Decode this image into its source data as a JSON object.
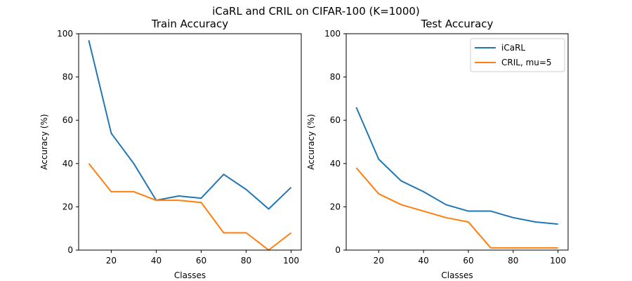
{
  "suptitle": "iCaRL and CRIL on CIFAR-100 (K=1000)",
  "colors": {
    "icarl": "#1f77b4",
    "cril": "#ff7f0e"
  },
  "chart_data": [
    {
      "type": "line",
      "title": "Train Accuracy",
      "xlabel": "Classes",
      "ylabel": "Accuracy (%)",
      "xlim": [
        5.5,
        104.5
      ],
      "ylim": [
        0,
        100
      ],
      "xticks": [
        20,
        40,
        60,
        80,
        100
      ],
      "yticks": [
        0,
        20,
        40,
        60,
        80,
        100
      ],
      "grid": false,
      "legend": null,
      "x": [
        10,
        20,
        30,
        40,
        50,
        60,
        70,
        80,
        90,
        100
      ],
      "series": [
        {
          "key": "icarl",
          "values": [
            97,
            54,
            40,
            23,
            25,
            24,
            35,
            28,
            19,
            29
          ]
        },
        {
          "key": "cril",
          "values": [
            40,
            27,
            27,
            23,
            23,
            22,
            8,
            8,
            0,
            8
          ]
        }
      ]
    },
    {
      "type": "line",
      "title": "Test Accuracy",
      "xlabel": "Classes",
      "ylabel": "Accuracy (%)",
      "xlim": [
        5.5,
        104.5
      ],
      "ylim": [
        0,
        100
      ],
      "xticks": [
        20,
        40,
        60,
        80,
        100
      ],
      "yticks": [
        0,
        20,
        40,
        60,
        80,
        100
      ],
      "grid": false,
      "legend": "top-right",
      "x": [
        10,
        20,
        30,
        40,
        50,
        60,
        70,
        80,
        90,
        100
      ],
      "series": [
        {
          "key": "icarl",
          "name": "iCaRL",
          "values": [
            66,
            42,
            32,
            27,
            21,
            18,
            18,
            15,
            13,
            12
          ]
        },
        {
          "key": "cril",
          "name": "CRIL, mu=5",
          "values": [
            38,
            26,
            21,
            18,
            15,
            13,
            1,
            1,
            1,
            1
          ]
        }
      ]
    }
  ]
}
